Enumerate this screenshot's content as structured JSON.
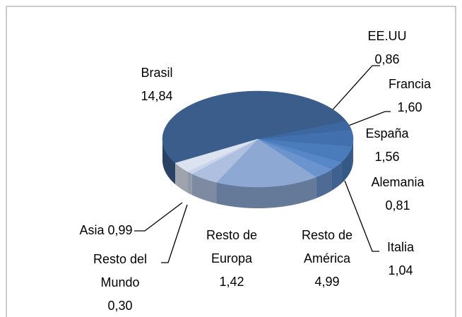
{
  "chart_data": {
    "type": "pie",
    "categories": [
      "Brasil",
      "EE.UU",
      "Francia",
      "España",
      "Alemania",
      "Italia",
      "Resto de América",
      "Resto de Europa",
      "Resto del Mundo",
      "Asia"
    ],
    "values": [
      14.84,
      0.86,
      1.6,
      1.56,
      0.81,
      1.04,
      4.99,
      1.42,
      0.3,
      0.99
    ],
    "value_labels": [
      "14,84",
      "0,86",
      "1,60",
      "1,56",
      "0,81",
      "1,04",
      "4,99",
      "1,42",
      "0,30",
      "0,99"
    ],
    "colors": [
      "#3a5d8c",
      "#3c67a0",
      "#4270ae",
      "#4a7cbc",
      "#5887c8",
      "#6b94cf",
      "#8ca8d3",
      "#aebfe0",
      "#c9d4ea",
      "#dbe2f0"
    ]
  }
}
